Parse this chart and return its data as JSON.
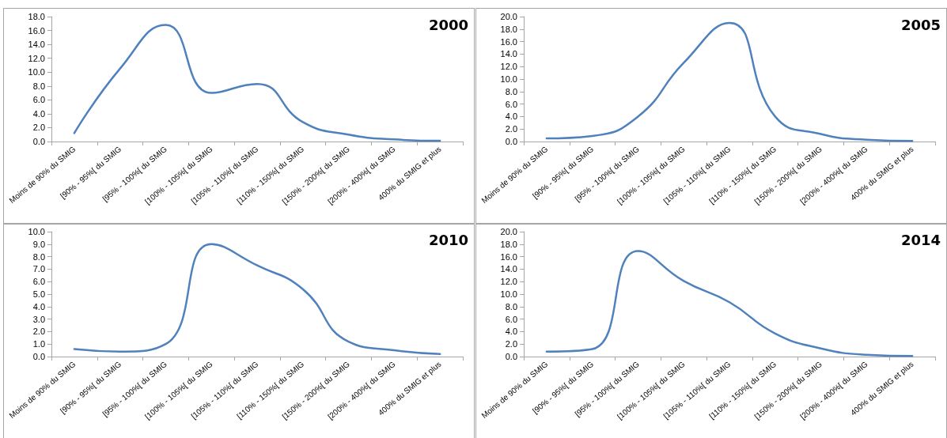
{
  "chart_data": [
    {
      "type": "line",
      "title": "2000",
      "categories": [
        "Moins de 90% du SMIG",
        "[90% - 95%[ du SMIG",
        "[95% - 100%[ du SMIG",
        "[100% - 105%[ du SMIG",
        "[105% - 110%[ du SMIG",
        "[110% - 150%[ du SMIG",
        "[150% - 200%[ du SMIG",
        "[200% - 400%[ du SMIG",
        "400% du SMIG et plus"
      ],
      "series": [
        {
          "color": "#4f81bd",
          "values": [
            1.2,
            10.5,
            16.8,
            7.0,
            8.3,
            2.8,
            1.0,
            0.3,
            0.1
          ]
        }
      ],
      "ylim": [
        0,
        18
      ],
      "yticks": [
        {
          "value": 0,
          "label": "0.0"
        },
        {
          "value": 2,
          "label": "2.0"
        },
        {
          "value": 4,
          "label": "4.0"
        },
        {
          "value": 6,
          "label": "6.0"
        },
        {
          "value": 8,
          "label": "8.0"
        },
        {
          "value": 10,
          "label": "10.0"
        },
        {
          "value": 12,
          "label": "12.0"
        },
        {
          "value": 14,
          "label": "14.0"
        },
        {
          "value": 16,
          "label": "16.0"
        },
        {
          "value": 18,
          "label": "18.0"
        }
      ],
      "grid": false,
      "marker": "none",
      "line_style": "solid"
    },
    {
      "type": "line",
      "title": "2005",
      "categories": [
        "Moins de 90% du SMIG",
        "[90% - 95%[ du SMIG",
        "[95% - 100%[ du SMIG",
        "[100% - 105%[ du SMIG",
        "[105% - 110%[ du SMIG",
        "[110% - 150%[ du SMIG",
        "[150% - 200%[ du SMIG",
        "[200% - 400%[ du SMIG",
        "400% du SMIG et plus"
      ],
      "series": [
        {
          "color": "#4f81bd",
          "values": [
            0.5,
            0.9,
            4.0,
            12.6,
            19.0,
            4.0,
            1.2,
            0.3,
            0.1
          ]
        }
      ],
      "ylim": [
        0,
        20
      ],
      "yticks": [
        {
          "value": 0,
          "label": "0.0"
        },
        {
          "value": 2,
          "label": "2.0"
        },
        {
          "value": 4,
          "label": "4.0"
        },
        {
          "value": 6,
          "label": "6.0"
        },
        {
          "value": 8,
          "label": "8.0"
        },
        {
          "value": 10,
          "label": "10.0"
        },
        {
          "value": 12,
          "label": "12.0"
        },
        {
          "value": 14,
          "label": "14.0"
        },
        {
          "value": 16,
          "label": "16.0"
        },
        {
          "value": 18,
          "label": "18.0"
        },
        {
          "value": 20,
          "label": "20.0"
        }
      ],
      "grid": false,
      "marker": "none",
      "line_style": "solid"
    },
    {
      "type": "line",
      "title": "2010",
      "categories": [
        "Moins de 90% du SMIG",
        "[90% - 95%[ du SMIG",
        "[95% - 100%[ du SMIG",
        "[100% - 105%[ du SMIG",
        "[105% - 110%[ du SMIG",
        "[110% - 150%[ du SMIG",
        "[150% - 200%[ du SMIG",
        "[200% - 400%[ du SMIG",
        "400% du SMIG et plus"
      ],
      "series": [
        {
          "color": "#4f81bd",
          "values": [
            0.6,
            0.4,
            1.0,
            9.0,
            7.3,
            5.4,
            1.2,
            0.5,
            0.2
          ]
        }
      ],
      "ylim": [
        0,
        10
      ],
      "yticks": [
        {
          "value": 0,
          "label": "0.0"
        },
        {
          "value": 1,
          "label": "1.0"
        },
        {
          "value": 2,
          "label": "2.0"
        },
        {
          "value": 3,
          "label": "3.0"
        },
        {
          "value": 4,
          "label": "4.0"
        },
        {
          "value": 5,
          "label": "5.0"
        },
        {
          "value": 6,
          "label": "6.0"
        },
        {
          "value": 7,
          "label": "7.0"
        },
        {
          "value": 8,
          "label": "8.0"
        },
        {
          "value": 9,
          "label": "9.0"
        },
        {
          "value": 10,
          "label": "10.0"
        }
      ],
      "grid": false,
      "marker": "none",
      "line_style": "solid"
    },
    {
      "type": "line",
      "title": "2014",
      "categories": [
        "Moins de 90% du SMIG",
        "[90% - 95%[ du SMIG",
        "[95% - 100%[ du SMIG",
        "[100% - 105%[ du SMIG",
        "[105% - 110%[ du SMIG",
        "[110% - 150%[ du SMIG",
        "[150% - 200%[ du SMIG",
        "[200% - 400%[ du SMIG",
        "400% du SMIG et plus"
      ],
      "series": [
        {
          "color": "#4f81bd",
          "values": [
            0.8,
            1.2,
            16.9,
            12.1,
            8.7,
            3.7,
            1.3,
            0.3,
            0.1
          ]
        }
      ],
      "ylim": [
        0,
        20
      ],
      "yticks": [
        {
          "value": 0,
          "label": "0.0"
        },
        {
          "value": 2,
          "label": "2.0"
        },
        {
          "value": 4,
          "label": "4.0"
        },
        {
          "value": 6,
          "label": "6.0"
        },
        {
          "value": 8,
          "label": "8.0"
        },
        {
          "value": 10,
          "label": "10.0"
        },
        {
          "value": 12,
          "label": "12.0"
        },
        {
          "value": 14,
          "label": "14.0"
        },
        {
          "value": 16,
          "label": "16.0"
        },
        {
          "value": 18,
          "label": "18.0"
        },
        {
          "value": 20,
          "label": "20.0"
        }
      ],
      "grid": false,
      "marker": "none",
      "line_style": "solid"
    }
  ]
}
